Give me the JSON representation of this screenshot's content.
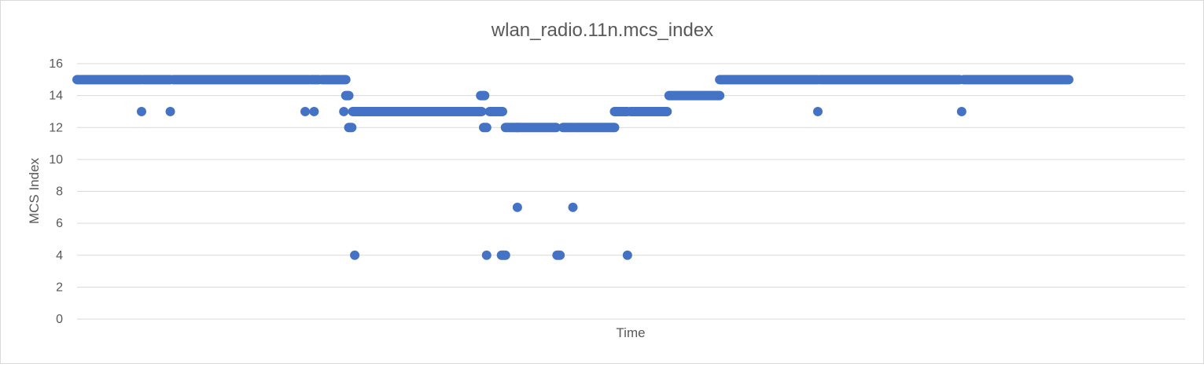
{
  "chart_data": {
    "type": "scatter",
    "title": "wlan_radio.11n.mcs_index",
    "xlabel": "Time",
    "ylabel": "MCS Index",
    "ylim": [
      0,
      16
    ],
    "yticks": [
      "0",
      "2",
      "4",
      "6",
      "8",
      "10",
      "12",
      "14",
      "16"
    ],
    "grid": true,
    "legend": "none",
    "marker_color": "#4472C4",
    "x_note": "x values are sample indices along the time axis (no tick labels shown)",
    "xlim": [
      0,
      1000
    ],
    "series": [
      {
        "points": [
          {
            "x": [
              0,
              65
            ],
            "y": 15
          },
          {
            "x": [
              67,
              94
            ],
            "y": 15
          },
          {
            "x": [
              97,
              234
            ],
            "y": 15
          },
          {
            "x": [
              236,
              244
            ],
            "y": 15
          },
          {
            "x": [
              247,
              271
            ],
            "y": 15
          },
          {
            "x": [
              65,
              65
            ],
            "y": 13
          },
          {
            "x": [
              94,
              94
            ],
            "y": 13
          },
          {
            "x": [
              230,
              230
            ],
            "y": 13
          },
          {
            "x": [
              239,
              239
            ],
            "y": 13
          },
          {
            "x": [
              269,
              269
            ],
            "y": 13
          },
          {
            "x": [
              271,
              274
            ],
            "y": 14
          },
          {
            "x": [
              274,
              277
            ],
            "y": 12
          },
          {
            "x": [
              280,
              280
            ],
            "y": 4
          },
          {
            "x": [
              278,
              408
            ],
            "y": 13
          },
          {
            "x": [
              407,
              411
            ],
            "y": 14
          },
          {
            "x": [
              410,
              413
            ],
            "y": 12
          },
          {
            "x": [
              413,
              413
            ],
            "y": 4
          },
          {
            "x": [
              416,
              429
            ],
            "y": 13
          },
          {
            "x": [
              428,
              432
            ],
            "y": 4
          },
          {
            "x": [
              432,
              444
            ],
            "y": 12
          },
          {
            "x": [
              444,
              444
            ],
            "y": 7
          },
          {
            "x": [
              444,
              483
            ],
            "y": 12
          },
          {
            "x": [
              484,
              487
            ],
            "y": 4
          },
          {
            "x": [
              490,
              500
            ],
            "y": 12
          },
          {
            "x": [
              500,
              500
            ],
            "y": 7
          },
          {
            "x": [
              502,
              542
            ],
            "y": 12
          },
          {
            "x": [
              542,
              555
            ],
            "y": 13
          },
          {
            "x": [
              555,
              555
            ],
            "y": 4
          },
          {
            "x": [
              558,
              595
            ],
            "y": 13
          },
          {
            "x": [
              597,
              648
            ],
            "y": 14
          },
          {
            "x": [
              648,
              747
            ],
            "y": 15
          },
          {
            "x": [
              747,
              747
            ],
            "y": 13
          },
          {
            "x": [
              749,
              890
            ],
            "y": 15
          },
          {
            "x": [
              892,
              892
            ],
            "y": 13
          },
          {
            "x": [
              894,
              1000
            ],
            "y": 15
          }
        ]
      }
    ]
  }
}
